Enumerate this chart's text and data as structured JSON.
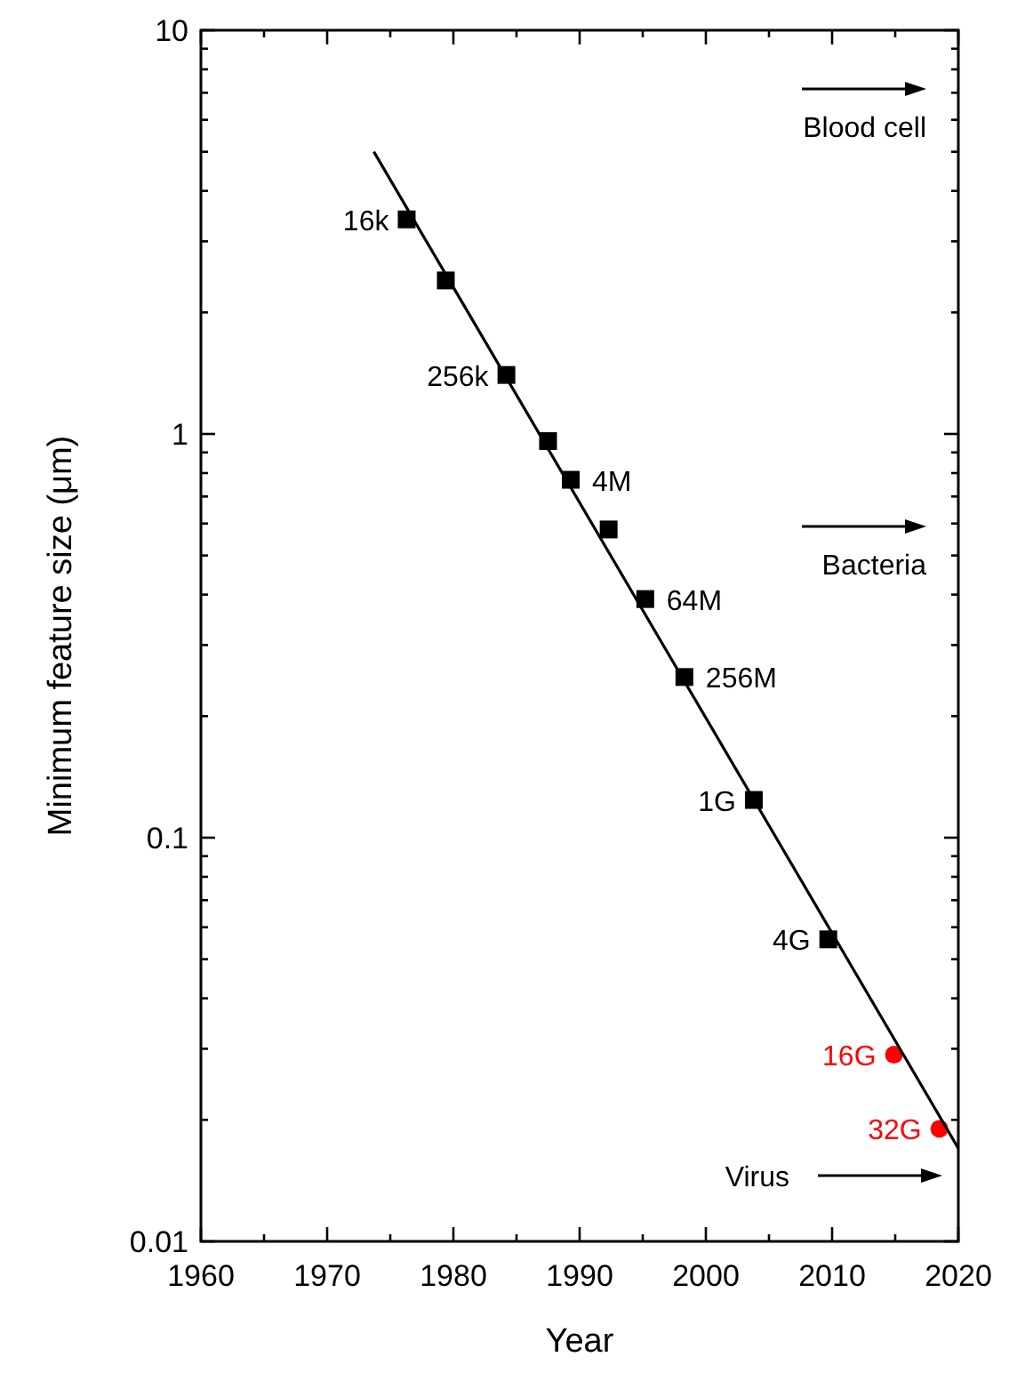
{
  "chart_data": {
    "type": "scatter",
    "xlabel": "Year",
    "ylabel": "Minimum feature size (μm)",
    "log": "y",
    "xlim": [
      1960,
      2020
    ],
    "ylim": [
      0.01,
      10
    ],
    "xticks": [
      1960,
      {
        "value": 1965,
        "label": null
      },
      1970,
      {
        "value": 1975,
        "label": null
      },
      1980,
      {
        "value": 1985,
        "label": null
      },
      1990,
      {
        "value": 1995,
        "label": null
      },
      2000,
      {
        "value": 2005,
        "label": null
      },
      2010,
      {
        "value": 2015,
        "label": null
      },
      2020
    ],
    "yticks": [
      0.01,
      {
        "value": 0.02,
        "label": null
      },
      {
        "value": 0.03,
        "label": null
      },
      {
        "value": 0.04,
        "label": null
      },
      {
        "value": 0.05,
        "label": null
      },
      {
        "value": 0.06,
        "label": null
      },
      {
        "value": 0.07,
        "label": null
      },
      {
        "value": 0.08,
        "label": null
      },
      {
        "value": 0.09,
        "label": null
      },
      0.1,
      {
        "value": 0.2,
        "label": null
      },
      {
        "value": 0.3,
        "label": null
      },
      {
        "value": 0.4,
        "label": null
      },
      {
        "value": 0.5,
        "label": null
      },
      {
        "value": 0.6,
        "label": null
      },
      {
        "value": 0.7,
        "label": null
      },
      {
        "value": 0.8,
        "label": null
      },
      {
        "value": 0.9,
        "label": null
      },
      1,
      {
        "value": 2,
        "label": null
      },
      {
        "value": 3,
        "label": null
      },
      {
        "value": 4,
        "label": null
      },
      {
        "value": 5,
        "label": null
      },
      {
        "value": 6,
        "label": null
      },
      {
        "value": 7,
        "label": null
      },
      {
        "value": 8,
        "label": null
      },
      {
        "value": 9,
        "label": null
      },
      10
    ],
    "grid": false,
    "series": [
      {
        "type": "scatter",
        "marker": "square",
        "color": "#000000",
        "x": [
          1976.3,
          1979.4,
          1984.2,
          1987.5,
          1989.3,
          1992.3,
          1995.2,
          1998.3,
          2003.8,
          2009.7
        ],
        "values": [
          3.4,
          2.4,
          1.4,
          0.96,
          0.77,
          0.58,
          0.39,
          0.25,
          0.124,
          0.056
        ]
      },
      {
        "type": "scatter",
        "marker": "circle",
        "color": "#ff0000",
        "x": [
          2014.9,
          2018.5
        ],
        "values": [
          0.029,
          0.019
        ]
      },
      {
        "type": "line",
        "marker": "none",
        "line_style": "solid",
        "color": "#000000",
        "x": [
          1973.7,
          2020
        ],
        "values": [
          5.0,
          0.017
        ]
      }
    ],
    "annotations": [
      {
        "text": "16k",
        "x": 1976.3,
        "y": 3.4
      },
      {
        "text": "256k",
        "x": 1984.2,
        "y": 1.4
      },
      {
        "text": "4M",
        "x": 1989.3,
        "y": 0.77
      },
      {
        "text": "64M",
        "x": 1995.2,
        "y": 0.39
      },
      {
        "text": "256M",
        "x": 1998.3,
        "y": 0.25
      },
      {
        "text": "1G",
        "x": 2003.8,
        "y": 0.124
      },
      {
        "text": "4G",
        "x": 2009.7,
        "y": 0.056
      },
      {
        "text": "16G",
        "x": 2014.9,
        "y": 0.029
      },
      {
        "text": "32G",
        "x": 2018.5,
        "y": 0.019
      },
      "Blood cell",
      "Bacteria",
      "Virus"
    ]
  }
}
